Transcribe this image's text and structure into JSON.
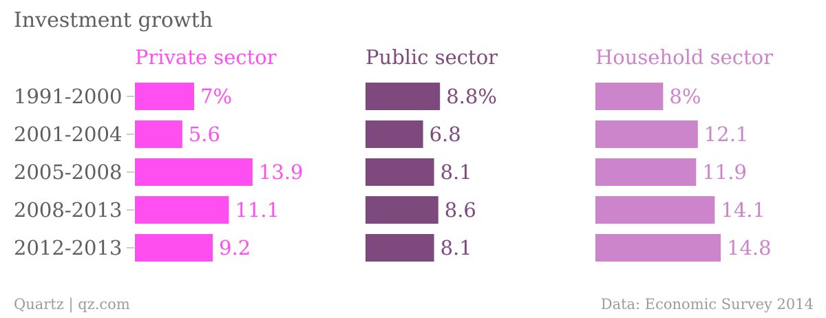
{
  "title": "Investment growth",
  "footer": {
    "credit": "Quartz | qz.com",
    "source": "Data: Economic Survey 2014"
  },
  "colors": {
    "text": "#5f5f5f",
    "muted": "#9b9b9b",
    "tick": "#bbbbbb"
  },
  "chart_data": {
    "type": "bar",
    "orientation": "horizontal",
    "categories": [
      "1991-2000",
      "2001-2004",
      "2005-2008",
      "2008-2013",
      "2012-2013"
    ],
    "series": [
      {
        "name": "Private sector",
        "values": [
          7,
          5.6,
          13.9,
          11.1,
          9.2
        ],
        "labels": [
          "7%",
          "5.6",
          "13.9",
          "11.1",
          "9.2"
        ],
        "color": "#ff4ff0"
      },
      {
        "name": "Public sector",
        "values": [
          8.8,
          6.8,
          8.1,
          8.6,
          8.1
        ],
        "labels": [
          "8.8%",
          "6.8",
          "8.1",
          "8.6",
          "8.1"
        ],
        "color": "#7e4a7d"
      },
      {
        "name": "Household sector",
        "values": [
          8,
          12.1,
          11.9,
          14.1,
          14.8
        ],
        "labels": [
          "8%",
          "12.1",
          "11.9",
          "14.1",
          "14.8"
        ],
        "color": "#cc84cb"
      }
    ],
    "unit": "%",
    "xlim": [
      0,
      14.8
    ],
    "grid": false,
    "legend": "panel-headers"
  }
}
